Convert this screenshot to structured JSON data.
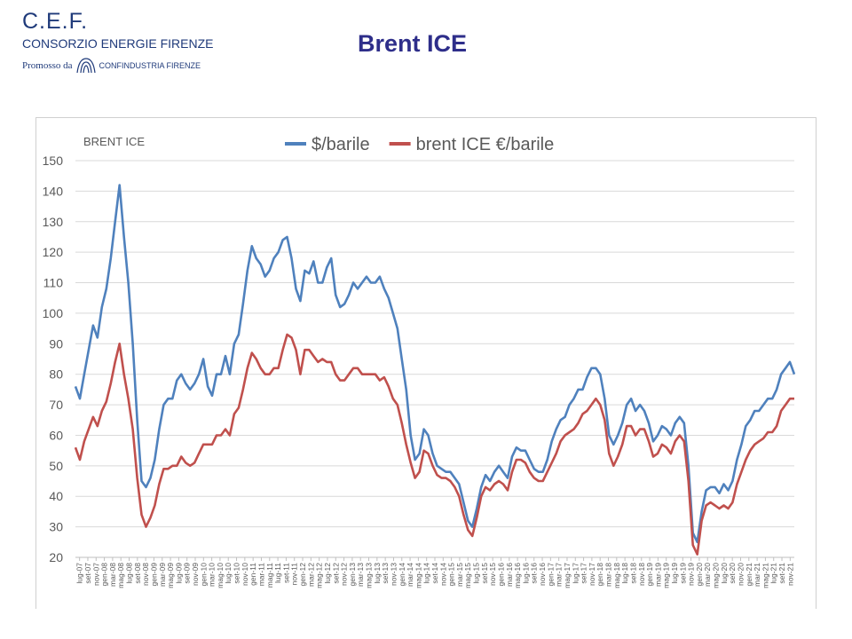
{
  "header": {
    "logo_title": "C.E.F.",
    "logo_subtitle": "CONSORZIO ENERGIE FIRENZE",
    "promo_text": "Promosso da",
    "promo_org": "CONFINDUSTRIA FIRENZE"
  },
  "page_title": "Brent ICE",
  "chart_data": {
    "type": "line",
    "title": "BRENT ICE",
    "ylim": [
      20,
      150
    ],
    "yticks": [
      20,
      30,
      40,
      50,
      60,
      70,
      80,
      90,
      100,
      110,
      120,
      130,
      140,
      150
    ],
    "grid": "horizontal",
    "legend_position": "top",
    "x_tick_labels": [
      "lug-07",
      "set-07",
      "nov-07",
      "gen-08",
      "mar-08",
      "mag-08",
      "lug-08",
      "set-08",
      "nov-08",
      "gen-09",
      "mar-09",
      "mag-09",
      "lug-09",
      "set-09",
      "nov-09",
      "gen-10",
      "mar-10",
      "mag-10",
      "lug-10",
      "set-10",
      "nov-10",
      "gen-11",
      "mar-11",
      "mag-11",
      "lug-11",
      "set-11",
      "nov-11",
      "gen-12",
      "mar-12",
      "mag-12",
      "lug-12",
      "set-12",
      "nov-12",
      "gen-13",
      "mar-13",
      "mag-13",
      "lug-13",
      "set-13",
      "nov-13",
      "gen-14",
      "mar-14",
      "mag-14",
      "lug-14",
      "set-14",
      "nov-14",
      "gen-15",
      "mar-15",
      "mag-15",
      "lug-15",
      "set-15",
      "nov-15",
      "gen-16",
      "mar-16",
      "mag-16",
      "lug-16",
      "set-16",
      "nov-16",
      "gen-17",
      "mar-17",
      "mag-17",
      "lug-17",
      "set-17",
      "nov-17",
      "gen-18",
      "mar-18",
      "mag-18",
      "lug-18",
      "set-18",
      "nov-18",
      "gen-19",
      "mar-19",
      "mag-19",
      "lug-19",
      "set-19",
      "nov-19",
      "gen-20",
      "mar-20",
      "mag-20",
      "lug-20",
      "set-20",
      "nov-20",
      "gen-21",
      "mar-21",
      "mag-21",
      "lug-21",
      "set-21",
      "nov-21"
    ],
    "series": [
      {
        "name": "$/barile",
        "color": "#4f81bd",
        "values": [
          76,
          72,
          80,
          88,
          96,
          92,
          102,
          108,
          118,
          130,
          142,
          125,
          110,
          90,
          65,
          45,
          43,
          46,
          52,
          62,
          70,
          72,
          72,
          78,
          80,
          77,
          75,
          77,
          80,
          85,
          76,
          73,
          80,
          80,
          86,
          80,
          90,
          93,
          103,
          114,
          122,
          118,
          116,
          112,
          114,
          118,
          120,
          124,
          125,
          118,
          108,
          104,
          114,
          113,
          117,
          110,
          110,
          115,
          118,
          106,
          102,
          103,
          106,
          110,
          108,
          110,
          112,
          110,
          110,
          112,
          108,
          105,
          100,
          95,
          85,
          75,
          60,
          52,
          54,
          62,
          60,
          54,
          50,
          49,
          48,
          48,
          46,
          44,
          38,
          32,
          30,
          36,
          43,
          47,
          45,
          48,
          50,
          48,
          46,
          53,
          56,
          55,
          55,
          52,
          49,
          48,
          48,
          52,
          58,
          62,
          65,
          66,
          70,
          72,
          75,
          75,
          79,
          82,
          82,
          80,
          72,
          60,
          57,
          60,
          64,
          70,
          72,
          68,
          70,
          68,
          64,
          58,
          60,
          63,
          62,
          60,
          64,
          66,
          64,
          50,
          28,
          25,
          35,
          42,
          43,
          43,
          41,
          44,
          42,
          45,
          52,
          57,
          63,
          65,
          68,
          68,
          70,
          72,
          72,
          75,
          80,
          82,
          84,
          80
        ]
      },
      {
        "name": "brent ICE €/barile",
        "color": "#c0504d",
        "values": [
          56,
          52,
          58,
          62,
          66,
          63,
          68,
          71,
          77,
          84,
          90,
          80,
          72,
          62,
          46,
          34,
          30,
          33,
          37,
          44,
          49,
          49,
          50,
          50,
          53,
          51,
          50,
          51,
          54,
          57,
          57,
          57,
          60,
          60,
          62,
          60,
          67,
          69,
          75,
          82,
          87,
          85,
          82,
          80,
          80,
          82,
          82,
          88,
          93,
          92,
          88,
          80,
          88,
          88,
          86,
          84,
          85,
          84,
          84,
          80,
          78,
          78,
          80,
          82,
          82,
          80,
          80,
          80,
          80,
          78,
          79,
          76,
          72,
          70,
          64,
          57,
          51,
          46,
          48,
          55,
          54,
          50,
          47,
          46,
          46,
          45,
          43,
          40,
          34,
          29,
          27,
          33,
          40,
          43,
          42,
          44,
          45,
          44,
          42,
          48,
          52,
          52,
          51,
          48,
          46,
          45,
          45,
          48,
          51,
          54,
          58,
          60,
          61,
          62,
          64,
          67,
          68,
          70,
          72,
          70,
          65,
          54,
          50,
          53,
          57,
          63,
          63,
          60,
          62,
          62,
          58,
          53,
          54,
          57,
          56,
          54,
          58,
          60,
          58,
          45,
          24,
          21,
          32,
          37,
          38,
          37,
          36,
          37,
          36,
          38,
          44,
          48,
          52,
          55,
          57,
          58,
          59,
          61,
          61,
          63,
          68,
          70,
          72,
          72
        ]
      }
    ]
  }
}
